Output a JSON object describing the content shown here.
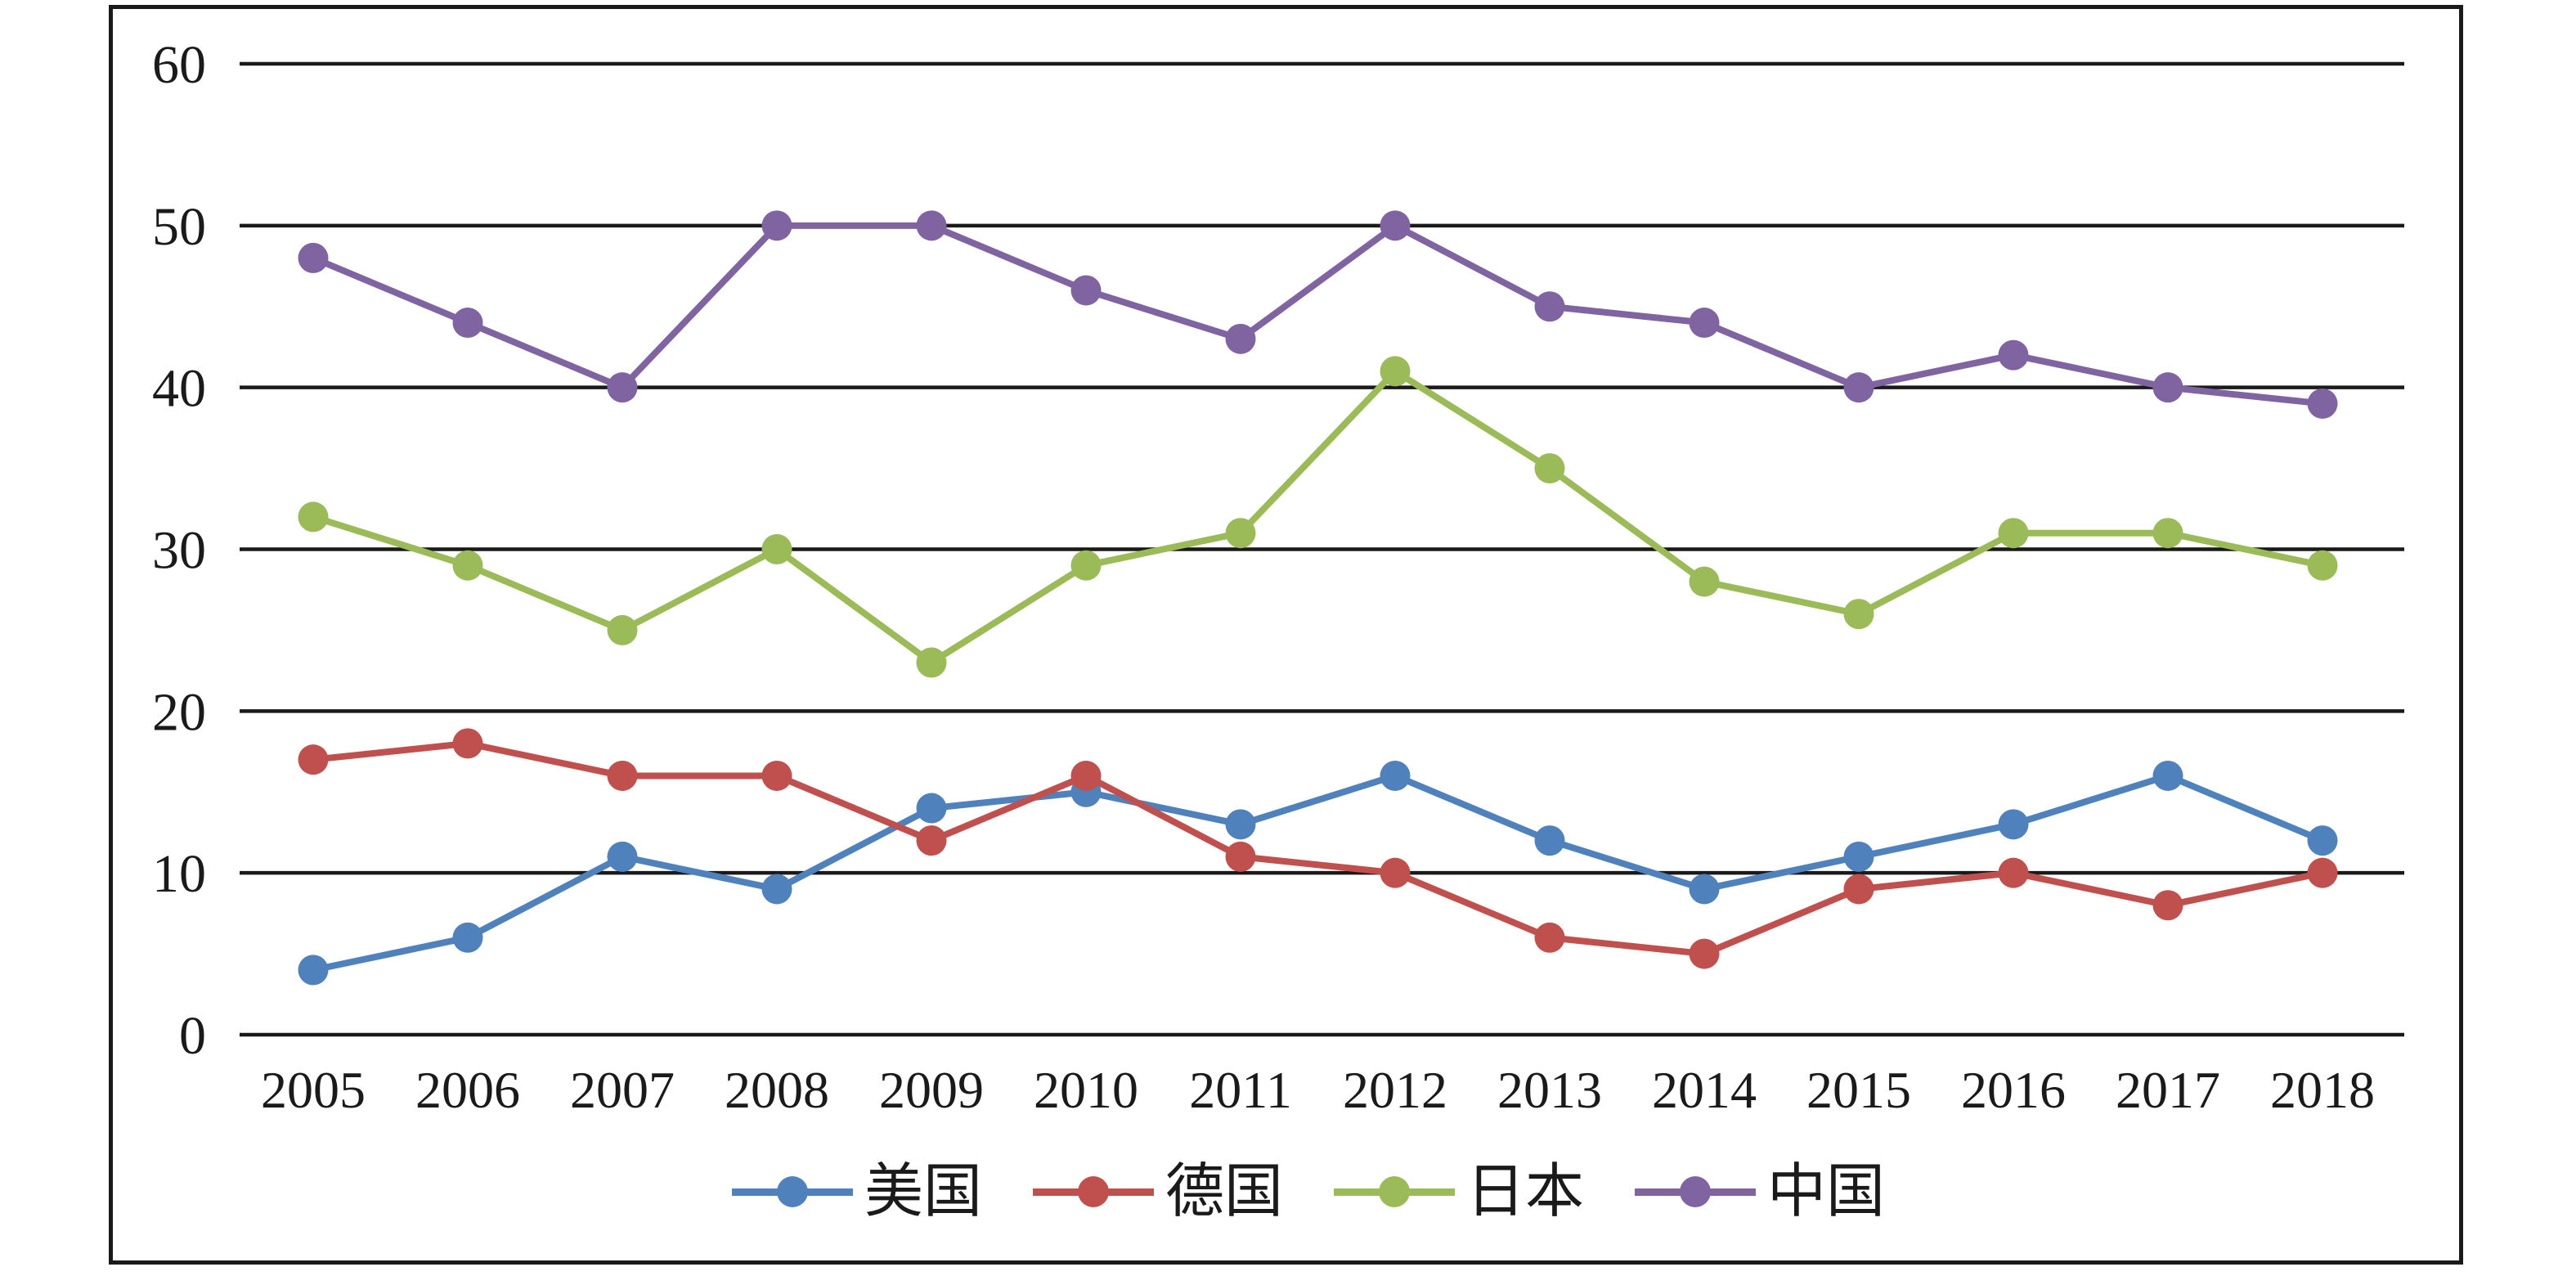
{
  "chart_data": {
    "type": "line",
    "title": "",
    "xlabel": "",
    "ylabel": "",
    "categories": [
      "2005",
      "2006",
      "2007",
      "2008",
      "2009",
      "2010",
      "2011",
      "2012",
      "2013",
      "2014",
      "2015",
      "2016",
      "2017",
      "2018"
    ],
    "series": [
      {
        "name": "美国",
        "color": "#4F81BD",
        "values": [
          4,
          6,
          11,
          9,
          14,
          15,
          13,
          16,
          12,
          9,
          11,
          13,
          16,
          12
        ]
      },
      {
        "name": "德国",
        "color": "#C0504D",
        "values": [
          17,
          18,
          16,
          16,
          12,
          16,
          11,
          10,
          6,
          5,
          9,
          10,
          8,
          10
        ]
      },
      {
        "name": "日本",
        "color": "#9BBB59",
        "values": [
          32,
          29,
          25,
          30,
          23,
          29,
          31,
          41,
          35,
          28,
          26,
          31,
          31,
          29
        ]
      },
      {
        "name": "中国",
        "color": "#8064A2",
        "values": [
          48,
          44,
          40,
          50,
          50,
          46,
          43,
          50,
          45,
          44,
          40,
          42,
          40,
          39
        ]
      }
    ],
    "ylim": [
      0,
      60
    ],
    "y_ticks": [
      "0",
      "10",
      "20",
      "30",
      "40",
      "50",
      "60"
    ],
    "grid": "horizontal-only",
    "legend_position": "bottom",
    "axis_color": "#1a1a1a",
    "background_color": "#ffffff"
  }
}
